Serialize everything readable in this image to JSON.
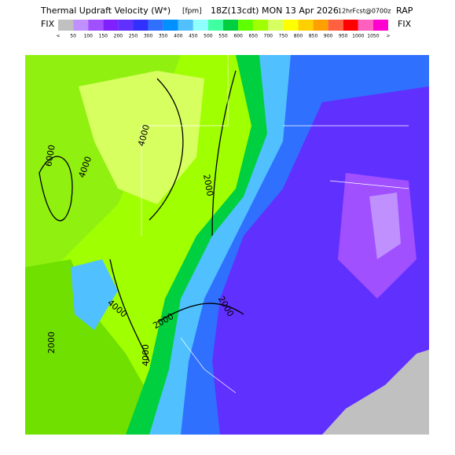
{
  "header": {
    "title": "Thermal Updraft Velocity (W*)",
    "units": "[fpm]",
    "time": "18Z(13cdt) MON 13 Apr 2026",
    "forecast": "12hrFcst@0700z",
    "model": "RAP"
  },
  "legend": {
    "left": "FIX",
    "right": "FIX",
    "labels": [
      "<",
      "50",
      "100",
      "150",
      "200",
      "250",
      "300",
      "350",
      "400",
      "450",
      "500",
      "550",
      "600",
      "650",
      "700",
      "750",
      "800",
      "850",
      "900",
      "950",
      "1000",
      "1050",
      ">"
    ],
    "colors": [
      "#c0c0c0",
      "#c090ff",
      "#a050ff",
      "#8020ff",
      "#6030ff",
      "#3030ff",
      "#3070ff",
      "#0090ff",
      "#50c0ff",
      "#90ffff",
      "#40ffa0",
      "#00d040",
      "#60ff00",
      "#a0ff00",
      "#d8ff60",
      "#ffff00",
      "#ffd000",
      "#ffa000",
      "#ff6040",
      "#ff0000",
      "#ff60c0",
      "#ff00d0"
    ]
  },
  "map": {
    "contour_labels": [
      "6000",
      "4000",
      "4000",
      "2000",
      "2000",
      "4000",
      "2000",
      "4000",
      "2000"
    ]
  }
}
